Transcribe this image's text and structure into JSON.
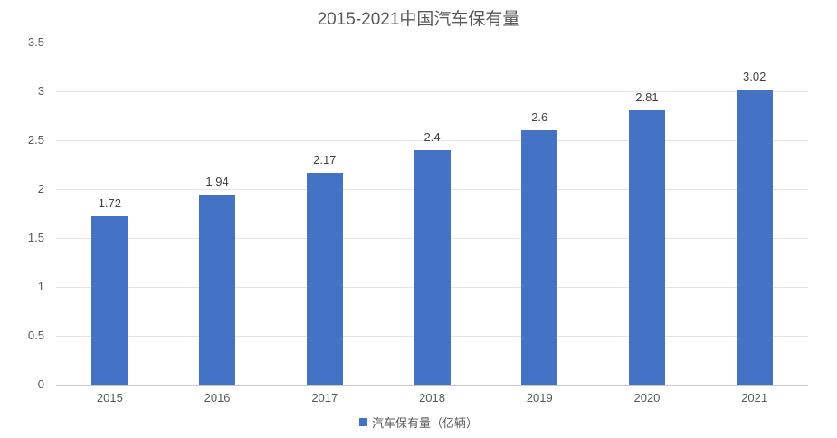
{
  "chart_data": {
    "type": "bar",
    "title": "2015-2021中国汽车保有量",
    "categories": [
      "2015",
      "2016",
      "2017",
      "2018",
      "2019",
      "2020",
      "2021"
    ],
    "values": [
      1.72,
      1.94,
      2.17,
      2.4,
      2.6,
      2.81,
      3.02
    ],
    "value_labels": [
      "1.72",
      "1.94",
      "2.17",
      "2.4",
      "2.6",
      "2.81",
      "3.02"
    ],
    "yticks": [
      3.5,
      3,
      2.5,
      2,
      1.5,
      1,
      0.5,
      0
    ],
    "ytick_labels": [
      "3.5",
      "3",
      "2.5",
      "2",
      "1.5",
      "1",
      "0.5",
      "0"
    ],
    "ylim": [
      0,
      3.5
    ],
    "xlabel": "",
    "ylabel": "",
    "grid": true,
    "legend_position": "bottom",
    "legend": {
      "series_label": "汽车保有量（亿辆）"
    },
    "colors": {
      "bar": "#4472c4",
      "gridline": "#e4e4e4",
      "axis_line": "#c9c9c9",
      "title_text": "#595959",
      "axis_text": "#595959",
      "value_label_text": "#404040"
    }
  }
}
